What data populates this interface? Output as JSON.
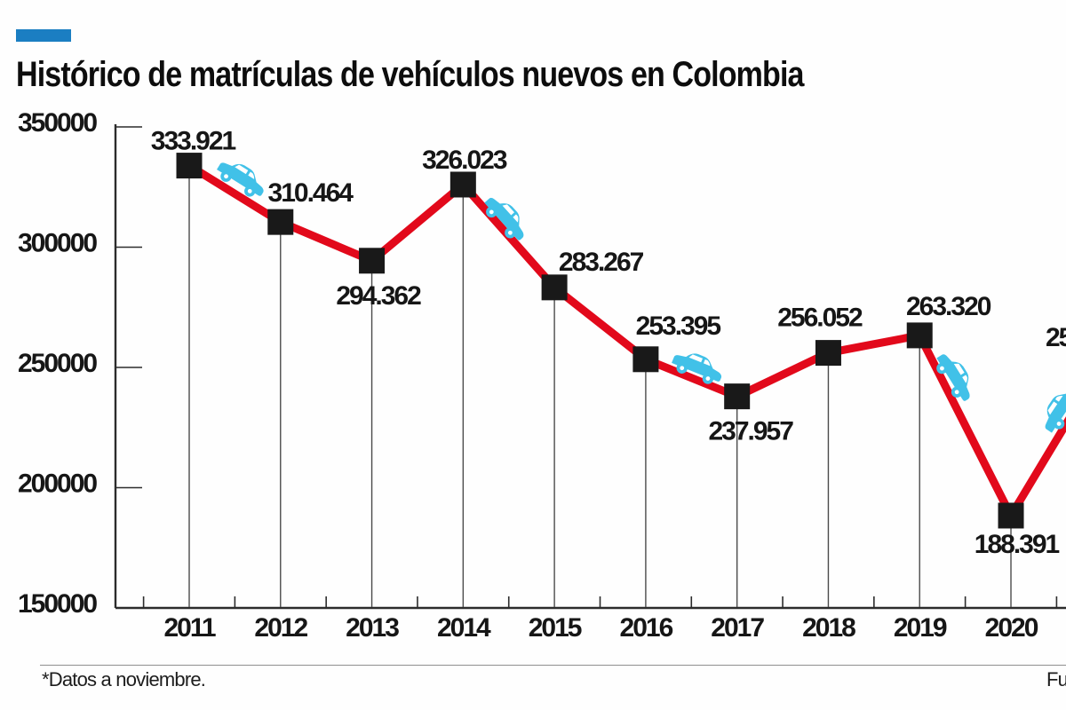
{
  "header": {
    "title": "Histórico de matrículas de vehículos nuevos en Colombia",
    "accent_color": "#1b7ec2"
  },
  "chart_data": {
    "type": "line",
    "title": "Histórico de matrículas de vehículos nuevos en Colombia",
    "categories": [
      "2011",
      "2012",
      "2013",
      "2014",
      "2015",
      "2016",
      "2017",
      "2018",
      "2019",
      "2020"
    ],
    "values": [
      333921,
      310464,
      294362,
      326023,
      283267,
      253395,
      237957,
      256052,
      263320,
      188391
    ],
    "point_labels": [
      "333.921",
      "310.464",
      "294.362",
      "326.023",
      "283.267",
      "253.395",
      "237.957",
      "256.052",
      "263.320",
      "188.391"
    ],
    "label_side": [
      "above",
      "above",
      "below",
      "above",
      "above",
      "above",
      "below",
      "above",
      "above",
      "below"
    ],
    "next_point_partial_label": "25",
    "xlabel": "",
    "ylabel": "",
    "ylim": [
      150000,
      350000
    ],
    "yticks": [
      350000,
      300000,
      250000,
      200000,
      150000
    ],
    "ytick_labels": [
      "350000",
      "300000",
      "250000",
      "200000",
      "150000"
    ],
    "grid": false,
    "legend": false,
    "line_color": "#e2091b",
    "marker": "square",
    "marker_color": "#191919",
    "car_icon_color": "#41c1e8",
    "car_icon_count": 5
  },
  "footer": {
    "note": "*Datos a noviembre.",
    "source_partial": "Fu"
  },
  "icons": {
    "car": "car-icon"
  }
}
